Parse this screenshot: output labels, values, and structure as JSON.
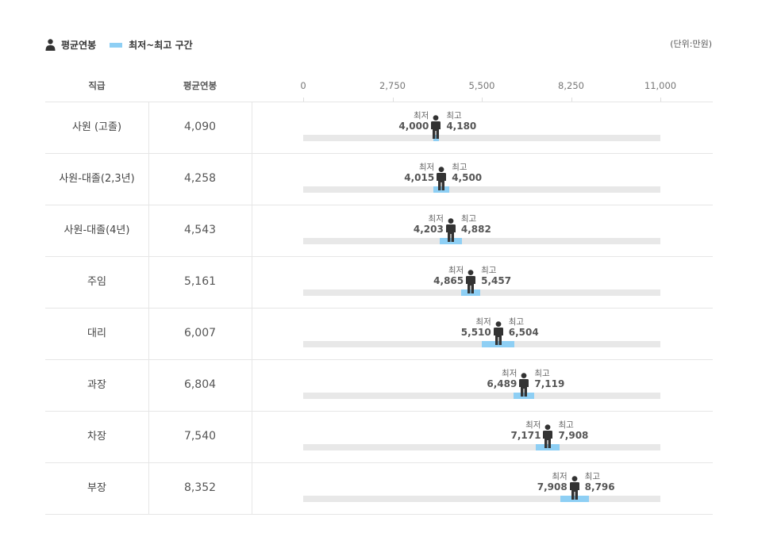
{
  "legend": {
    "avg_label": "평균연봉",
    "range_label": "최저~최고 구간"
  },
  "unit_label": "(단위:만원)",
  "headers": {
    "grade": "직급",
    "avg": "평균연봉"
  },
  "colors": {
    "range": "#8ecff4",
    "track": "#e8e8e8",
    "figure": "#333333"
  },
  "chart_data": {
    "type": "range-bar",
    "x_ticks": [
      "0",
      "2,750",
      "5,500",
      "8,250",
      "11,000"
    ],
    "xlim": [
      0,
      11000
    ],
    "min_label": "최저",
    "max_label": "최고",
    "rows": [
      {
        "grade": "사원 (고졸)",
        "avg": 4090,
        "avg_label": "4,090",
        "min": 4000,
        "min_label": "4,000",
        "max": 4180,
        "max_label": "4,180"
      },
      {
        "grade": "사원-대졸(2,3년)",
        "avg": 4258,
        "avg_label": "4,258",
        "min": 4015,
        "min_label": "4,015",
        "max": 4500,
        "max_label": "4,500"
      },
      {
        "grade": "사원-대졸(4년)",
        "avg": 4543,
        "avg_label": "4,543",
        "min": 4203,
        "min_label": "4,203",
        "max": 4882,
        "max_label": "4,882"
      },
      {
        "grade": "주임",
        "avg": 5161,
        "avg_label": "5,161",
        "min": 4865,
        "min_label": "4,865",
        "max": 5457,
        "max_label": "5,457"
      },
      {
        "grade": "대리",
        "avg": 6007,
        "avg_label": "6,007",
        "min": 5510,
        "min_label": "5,510",
        "max": 6504,
        "max_label": "6,504"
      },
      {
        "grade": "과장",
        "avg": 6804,
        "avg_label": "6,804",
        "min": 6489,
        "min_label": "6,489",
        "max": 7119,
        "max_label": "7,119"
      },
      {
        "grade": "차장",
        "avg": 7540,
        "avg_label": "7,540",
        "min": 7171,
        "min_label": "7,171",
        "max": 7908,
        "max_label": "7,908"
      },
      {
        "grade": "부장",
        "avg": 8352,
        "avg_label": "8,352",
        "min": 7908,
        "min_label": "7,908",
        "max": 8796,
        "max_label": "8,796"
      }
    ]
  }
}
